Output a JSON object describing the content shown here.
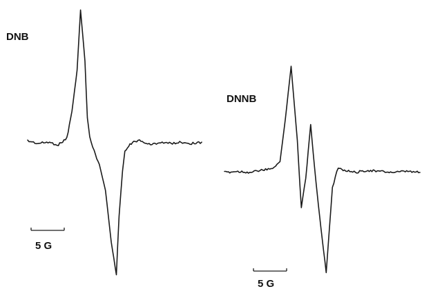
{
  "chart_data": [
    {
      "type": "line",
      "title": "DNB",
      "scale_label": "5 G",
      "color": "#1a1a1a",
      "spectrum": "derivative EPR spectrum",
      "x_field_G": [
        -21,
        -18,
        -15,
        -12,
        -9.5,
        -8,
        -6.5,
        -5.5,
        -4.2,
        -3.5,
        -2.8,
        -1.5,
        0,
        1.8,
        3.5,
        5.0,
        5.8,
        6.8,
        7.5,
        9.0,
        10.5,
        11.8,
        13,
        15,
        18,
        21,
        24,
        27,
        30
      ],
      "y_signal": [
        0.03,
        0.01,
        0.02,
        0.0,
        0.05,
        0.25,
        0.55,
        1.0,
        0.62,
        0.2,
        0.06,
        -0.05,
        -0.15,
        -0.35,
        -0.75,
        -1.0,
        -0.55,
        -0.2,
        -0.05,
        0.0,
        0.03,
        0.03,
        0.02,
        0.0,
        0.02,
        0.01,
        0.02,
        0.01,
        0.02
      ]
    },
    {
      "type": "line",
      "title": "DNNB",
      "scale_label": "5 G",
      "color": "#1a1a1a",
      "spectrum": "derivative EPR spectrum",
      "x_field_G": [
        -16,
        -13,
        -10,
        -8,
        -5.5,
        -3.5,
        -2.3,
        -1.0,
        0.4,
        1.3,
        2.3,
        3.4,
        4.6,
        5.7,
        6.9,
        8.3,
        9.6,
        11.0,
        13.5,
        16,
        19,
        22,
        25,
        28
      ],
      "y_signal": [
        0.0,
        0.01,
        0.0,
        0.02,
        0.03,
        0.1,
        0.5,
        1.0,
        0.3,
        -0.35,
        -0.05,
        0.45,
        -0.1,
        -0.55,
        -1.0,
        -0.15,
        0.05,
        0.02,
        0.0,
        0.02,
        0.01,
        0.0,
        0.01,
        0.0
      ]
    }
  ]
}
